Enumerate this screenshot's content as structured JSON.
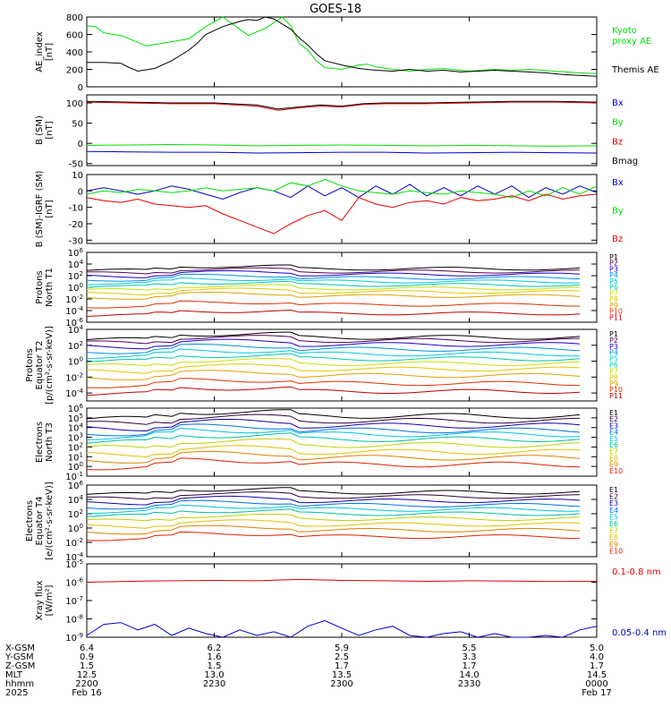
{
  "title": "GOES-18",
  "colors": {
    "black": "#000000",
    "green": "#00e000",
    "blue": "#0000c8",
    "red": "#e00000",
    "p": [
      "#000000",
      "#550055",
      "#1a00c8",
      "#0090e0",
      "#00c8e0",
      "#00c8a8",
      "#c8e000",
      "#e0c800",
      "#e0a000",
      "#e03000",
      "#c00000"
    ],
    "e": [
      "#000000",
      "#300040",
      "#1000b0",
      "#0070e0",
      "#00c0e0",
      "#00c0a0",
      "#c0d000",
      "#e0c000",
      "#e08000",
      "#e02000"
    ]
  },
  "footer": {
    "row_labels": [
      "X-GSM",
      "Y-GSM",
      "Z-GSM",
      "MLT",
      "hhmm",
      "2025"
    ],
    "columns": [
      [
        "6.4",
        "0.9",
        "1.5",
        "12.5",
        "2200",
        "Feb 16"
      ],
      [
        "6.2",
        "1.6",
        "1.5",
        "13.0",
        "2230",
        ""
      ],
      [
        "5.9",
        "2.5",
        "1.7",
        "13.5",
        "2300",
        ""
      ],
      [
        "5.5",
        "3.3",
        "1.7",
        "14.0",
        "2330",
        ""
      ],
      [
        "5.0",
        "4.0",
        "1.7",
        "14.5",
        "0000",
        "Feb 17"
      ]
    ]
  },
  "chart_data": [
    {
      "type": "line",
      "ylabel": "AE_index\n[nT]",
      "ylim": [
        0,
        800
      ],
      "yticks": [
        "0",
        "200",
        "400",
        "600",
        "800"
      ],
      "legend": [
        {
          "text": "Kyoto",
          "color": "green"
        },
        {
          "text": "proxy AE",
          "color": "green"
        },
        {
          "text": "Themis AE",
          "color": "black"
        }
      ],
      "series": [
        {
          "name": "Kyoto proxy AE",
          "color": "green",
          "x": [
            0,
            2,
            4,
            6,
            8,
            12,
            14,
            18,
            24,
            28,
            32,
            38,
            42,
            46,
            48,
            50,
            52,
            54,
            56,
            60,
            64,
            66,
            68,
            72,
            76,
            80,
            84,
            90,
            96,
            100,
            104,
            110,
            116,
            120
          ],
          "values": [
            700,
            690,
            620,
            600,
            590,
            510,
            470,
            500,
            550,
            690,
            800,
            590,
            670,
            800,
            700,
            500,
            420,
            300,
            220,
            200,
            250,
            260,
            230,
            200,
            180,
            200,
            210,
            180,
            200,
            190,
            200,
            180,
            160,
            150
          ]
        },
        {
          "name": "Themis AE",
          "color": "black",
          "x": [
            0,
            4,
            8,
            10,
            12,
            16,
            20,
            24,
            26,
            28,
            32,
            36,
            38,
            40,
            42,
            44,
            46,
            48,
            50,
            52,
            54,
            56,
            60,
            64,
            68,
            72,
            76,
            80,
            84,
            88,
            92,
            96,
            100,
            104,
            108,
            112,
            116,
            120
          ],
          "values": [
            280,
            280,
            270,
            220,
            180,
            210,
            300,
            420,
            500,
            600,
            690,
            750,
            770,
            760,
            800,
            780,
            720,
            660,
            560,
            480,
            380,
            300,
            250,
            210,
            190,
            180,
            200,
            180,
            190,
            170,
            180,
            190,
            180,
            170,
            160,
            140,
            130,
            120
          ]
        }
      ]
    },
    {
      "type": "line",
      "ylabel": "B (SM)\n[nT]",
      "ylim": [
        -55,
        120
      ],
      "yticks": [
        "-50",
        "0",
        "50",
        "100"
      ],
      "ytick_values": [
        -50,
        0,
        50,
        100
      ],
      "legend": [
        {
          "text": "Bx",
          "color": "blue"
        },
        {
          "text": "By",
          "color": "green"
        },
        {
          "text": "Bz",
          "color": "red"
        },
        {
          "text": "Bmag",
          "color": "black"
        }
      ],
      "series": [
        {
          "name": "Bmag",
          "color": "black",
          "x": [
            0,
            10,
            20,
            30,
            40,
            45,
            50,
            55,
            60,
            65,
            70,
            80,
            90,
            100,
            110,
            120
          ],
          "values": [
            104,
            102,
            100,
            100,
            95,
            85,
            90,
            95,
            92,
            98,
            100,
            100,
            102,
            104,
            104,
            102
          ]
        },
        {
          "name": "Bz",
          "color": "red",
          "x": [
            0,
            10,
            20,
            30,
            40,
            45,
            50,
            55,
            60,
            65,
            70,
            80,
            90,
            100,
            110,
            120
          ],
          "values": [
            102,
            100,
            98,
            98,
            92,
            82,
            88,
            92,
            90,
            96,
            98,
            98,
            100,
            102,
            102,
            100
          ]
        },
        {
          "name": "By",
          "color": "green",
          "x": [
            0,
            10,
            20,
            30,
            40,
            50,
            60,
            70,
            80,
            90,
            100,
            110,
            120
          ],
          "values": [
            -5,
            -4,
            -3,
            -4,
            -6,
            -5,
            -4,
            -5,
            -6,
            -5,
            -6,
            -7,
            -6
          ]
        },
        {
          "name": "Bx",
          "color": "blue",
          "x": [
            0,
            10,
            20,
            30,
            40,
            50,
            60,
            70,
            80,
            90,
            100,
            110,
            120
          ],
          "values": [
            -20,
            -21,
            -22,
            -22,
            -24,
            -23,
            -22,
            -22,
            -24,
            -23,
            -22,
            -23,
            -24
          ]
        }
      ]
    },
    {
      "type": "line",
      "ylabel": "B (SM)-IGRF (SM)\n[nT]",
      "ylim": [
        -32,
        10
      ],
      "yticks": [
        "-30",
        "-20",
        "-10",
        "0",
        "10"
      ],
      "ytick_values": [
        -30,
        -20,
        -10,
        0,
        10
      ],
      "legend": [
        {
          "text": "Bx",
          "color": "blue"
        },
        {
          "text": "By",
          "color": "green"
        },
        {
          "text": "Bz",
          "color": "red"
        }
      ],
      "series": [
        {
          "name": "Bx",
          "color": "blue",
          "x": [
            0,
            4,
            8,
            12,
            16,
            20,
            24,
            28,
            32,
            36,
            40,
            44,
            48,
            52,
            56,
            60,
            64,
            68,
            72,
            76,
            80,
            84,
            88,
            92,
            96,
            100,
            104,
            108,
            112,
            116,
            120
          ],
          "values": [
            0,
            2,
            0,
            -2,
            0,
            3,
            1,
            -2,
            -5,
            -1,
            2,
            0,
            -4,
            3,
            -3,
            2,
            -4,
            3,
            -2,
            4,
            -3,
            2,
            -3,
            3,
            -2,
            3,
            -4,
            2,
            -2,
            3,
            -1
          ]
        },
        {
          "name": "By",
          "color": "green",
          "x": [
            0,
            4,
            8,
            12,
            16,
            20,
            24,
            28,
            32,
            36,
            40,
            44,
            48,
            52,
            56,
            60,
            64,
            68,
            72,
            76,
            80,
            84,
            88,
            92,
            96,
            100,
            104,
            108,
            112,
            116,
            120
          ],
          "values": [
            -2,
            0,
            -1,
            1,
            0,
            -1,
            0,
            2,
            0,
            1,
            2,
            0,
            5,
            3,
            7,
            3,
            0,
            -1,
            -2,
            0,
            -1,
            -2,
            0,
            -1,
            -2,
            -4,
            0,
            -3,
            2,
            -2,
            3
          ]
        },
        {
          "name": "Bz",
          "color": "red",
          "x": [
            0,
            4,
            8,
            12,
            16,
            20,
            24,
            28,
            32,
            36,
            40,
            44,
            48,
            52,
            56,
            60,
            64,
            68,
            72,
            76,
            80,
            84,
            88,
            92,
            96,
            100,
            104,
            108,
            112,
            116,
            120
          ],
          "values": [
            -4,
            -6,
            -7,
            -5,
            -8,
            -9,
            -10,
            -9,
            -14,
            -18,
            -22,
            -26,
            -20,
            -15,
            -12,
            -18,
            -4,
            -8,
            -10,
            -7,
            -6,
            -8,
            -4,
            -6,
            -5,
            -3,
            -6,
            -2,
            -5,
            -3,
            -2
          ]
        }
      ]
    },
    {
      "type": "line",
      "ylabel": "Protons\nNorth T1",
      "yscale": "log",
      "ylim": [
        -6,
        6
      ],
      "yticks": [
        "10^6",
        "10^4",
        "10^2",
        "10^0",
        "10^-2",
        "10^-4",
        "10^-6"
      ],
      "ytick_values": [
        6,
        4,
        2,
        0,
        -2,
        -4,
        -6
      ],
      "legend_colors": "p",
      "legend": [
        "P1",
        "P2",
        "P3",
        "P4",
        "P5",
        "P6",
        "P7",
        "P8",
        "P9",
        "P10",
        "P11"
      ],
      "log_levels": [
        3.2,
        2.7,
        2.2,
        1.6,
        1.0,
        0.4,
        -0.2,
        -0.8,
        -1.5,
        -3.0,
        -4.5
      ]
    },
    {
      "type": "line",
      "ylabel": "Protons\nEquator T2\n[p/(cm²-s-sr-keV)]",
      "yscale": "log",
      "ylim": [
        -5,
        4
      ],
      "yticks": [
        "10^4",
        "10^2",
        "10^0",
        "10^-2",
        "10^-4"
      ],
      "ytick_values": [
        4,
        2,
        0,
        -2,
        -4
      ],
      "legend_colors": "p",
      "legend": [
        "P1",
        "P2",
        "P3",
        "P4",
        "P5",
        "P6",
        "P7",
        "P8",
        "P9",
        "P10",
        "P11"
      ],
      "log_levels": [
        3.0,
        2.6,
        2.1,
        1.5,
        0.9,
        0.3,
        -0.3,
        -1.0,
        -1.8,
        -2.8,
        -3.8
      ]
    },
    {
      "type": "line",
      "ylabel": "Electrons\nNorth T3",
      "yscale": "log",
      "ylim": [
        -1,
        6
      ],
      "yticks": [
        "10^6",
        "10^5",
        "10^4",
        "10^3",
        "10^2",
        "10^1",
        "10^0",
        "10^-1"
      ],
      "ytick_values": [
        6,
        5,
        4,
        3,
        2,
        1,
        0,
        -1
      ],
      "legend_colors": "e",
      "legend": [
        "E1",
        "E2",
        "E3",
        "E4",
        "E5",
        "E6",
        "E7",
        "E8",
        "E9",
        "E10"
      ],
      "log_levels": [
        5.2,
        4.7,
        4.2,
        3.7,
        3.3,
        2.8,
        2.2,
        1.5,
        0.9,
        0.2
      ]
    },
    {
      "type": "line",
      "ylabel": "Electrons\nEquator T4\n[e/(cm²-s-sr-keV)]",
      "yscale": "log",
      "ylim": [
        -4,
        6
      ],
      "yticks": [
        "10^6",
        "10^4",
        "10^2",
        "10^0",
        "10^-2",
        "10^-4"
      ],
      "ytick_values": [
        6,
        4,
        2,
        0,
        -2,
        -4
      ],
      "legend_colors": "e",
      "legend": [
        "E1",
        "E2",
        "E3",
        "E4",
        "E5",
        "E6",
        "E7",
        "E8",
        "E9",
        "E10"
      ],
      "log_levels": [
        5.0,
        4.4,
        3.8,
        3.2,
        2.6,
        2.0,
        1.3,
        0.5,
        -0.3,
        -1.2
      ]
    },
    {
      "type": "line",
      "ylabel": "Xray flux\n[W/m²]",
      "yscale": "log",
      "ylim": [
        -9,
        -5
      ],
      "yticks": [
        "10^-5",
        "10^-6",
        "10^-7",
        "10^-8",
        "10^-9"
      ],
      "ytick_values": [
        -5,
        -6,
        -7,
        -8,
        -9
      ],
      "legend": [
        {
          "text": "0.1-0.8 nm",
          "color": "red"
        },
        {
          "text": "0.05-0.4 nm",
          "color": "blue"
        }
      ],
      "series": [
        {
          "name": "0.1-0.8 nm",
          "color": "red",
          "x": [
            0,
            10,
            20,
            30,
            40,
            50,
            60,
            70,
            80,
            90,
            100,
            110,
            120
          ],
          "values": [
            -6.0,
            -5.95,
            -5.92,
            -5.9,
            -5.92,
            -5.85,
            -5.9,
            -5.92,
            -5.95,
            -5.92,
            -5.94,
            -5.96,
            -5.95
          ]
        },
        {
          "name": "0.05-0.4 nm",
          "color": "blue",
          "x": [
            0,
            4,
            8,
            12,
            16,
            20,
            24,
            28,
            32,
            36,
            40,
            44,
            48,
            52,
            56,
            60,
            64,
            68,
            72,
            76,
            80,
            84,
            88,
            92,
            96,
            100,
            104,
            108,
            112,
            116,
            120
          ],
          "values": [
            -8.9,
            -8.3,
            -8.2,
            -8.6,
            -8.3,
            -8.9,
            -8.5,
            -8.8,
            -9.0,
            -8.6,
            -8.9,
            -8.7,
            -9.0,
            -8.4,
            -8.1,
            -8.5,
            -8.9,
            -8.6,
            -8.4,
            -8.9,
            -9.0,
            -8.8,
            -8.7,
            -9.0,
            -8.8,
            -9.0,
            -9.0,
            -8.9,
            -9.0,
            -8.6,
            -8.4
          ]
        }
      ]
    }
  ]
}
